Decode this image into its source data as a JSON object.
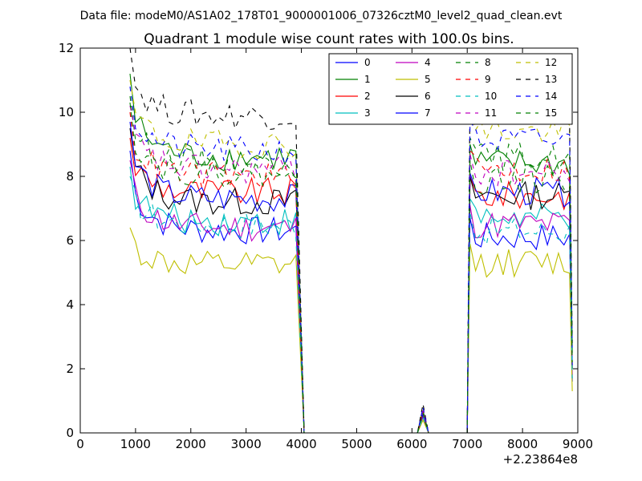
{
  "chart_data": {
    "type": "line",
    "suptitle": "Data file: modeM0/AS1A02_178T01_9000001006_07326cztM0_level2_quad_clean.evt",
    "title": "Quadrant 1 module wise count rates with 100.0s bins.",
    "xlabel": "",
    "ylabel": "",
    "xlim": [
      0,
      9000
    ],
    "ylim": [
      0,
      12
    ],
    "x_offset_label": "+2.23864e8",
    "x_ticks": [
      0,
      1000,
      2000,
      3000,
      4000,
      5000,
      6000,
      7000,
      8000,
      9000
    ],
    "x_tick_labels": [
      "0",
      "1000",
      "2000",
      "3000",
      "4000",
      "5000",
      "6000",
      "7000",
      "8000",
      "9000"
    ],
    "y_ticks": [
      0,
      2,
      4,
      6,
      8,
      10,
      12
    ],
    "y_tick_labels": [
      "0",
      "2",
      "4",
      "6",
      "8",
      "10",
      "12"
    ],
    "legend_position": "top-right",
    "legend_columns": 4,
    "segments": {
      "seg1_start": 900,
      "seg1_end": 3950,
      "seg2_start": 7050,
      "seg2_end": 8850,
      "step": 100,
      "gap_points": [
        [
          4050,
          0
        ],
        [
          4100,
          0
        ],
        [
          6000,
          0
        ],
        [
          6100,
          0
        ],
        [
          6200,
          "peak"
        ],
        [
          6300,
          0
        ],
        [
          7000,
          0
        ]
      ],
      "tail_x": 8900
    },
    "series": [
      {
        "name": "0",
        "color": "#0000ff",
        "dash": "solid",
        "level1": 6.3,
        "level2": 6.1,
        "start": 8.8,
        "peak": 0.6,
        "tail": 1.6
      },
      {
        "name": "1",
        "color": "#008000",
        "dash": "solid",
        "level1": 8.6,
        "level2": 8.4,
        "start": 11.2,
        "peak": 0.7,
        "tail": 2.5
      },
      {
        "name": "2",
        "color": "#ff0000",
        "dash": "solid",
        "level1": 7.5,
        "level2": 7.4,
        "start": 9.2,
        "peak": 0.6,
        "tail": 2.0
      },
      {
        "name": "3",
        "color": "#00bfbf",
        "dash": "solid",
        "level1": 6.6,
        "level2": 6.7,
        "start": 8.3,
        "peak": 0.5,
        "tail": 1.8
      },
      {
        "name": "4",
        "color": "#bf00bf",
        "dash": "solid",
        "level1": 6.4,
        "level2": 6.5,
        "start": 8.5,
        "peak": 0.5,
        "tail": 1.7
      },
      {
        "name": "5",
        "color": "#bfbf00",
        "dash": "solid",
        "level1": 5.2,
        "level2": 5.3,
        "start": 6.4,
        "peak": 0.4,
        "tail": 1.3
      },
      {
        "name": "6",
        "color": "#000000",
        "dash": "solid",
        "level1": 7.2,
        "level2": 7.4,
        "start": 9.5,
        "peak": 0.6,
        "tail": 2.0
      },
      {
        "name": "7",
        "color": "#0000ff",
        "dash": "solid",
        "level1": 7.3,
        "level2": 7.5,
        "start": 9.7,
        "peak": 0.6,
        "tail": 2.1
      },
      {
        "name": "8",
        "color": "#008000",
        "dash": "dashed",
        "level1": 8.4,
        "level2": 8.6,
        "start": 10.5,
        "peak": 0.7,
        "tail": 2.4
      },
      {
        "name": "9",
        "color": "#ff0000",
        "dash": "dashed",
        "level1": 8.0,
        "level2": 8.2,
        "start": 10.0,
        "peak": 0.7,
        "tail": 2.3
      },
      {
        "name": "10",
        "color": "#00bfbf",
        "dash": "dashed",
        "level1": 6.5,
        "level2": 6.3,
        "start": 8.0,
        "peak": 0.5,
        "tail": 1.7
      },
      {
        "name": "11",
        "color": "#bf00bf",
        "dash": "dashed",
        "level1": 8.2,
        "level2": 8.1,
        "start": 10.2,
        "peak": 0.7,
        "tail": 2.2
      },
      {
        "name": "12",
        "color": "#bfbf00",
        "dash": "dashed",
        "level1": 9.0,
        "level2": 9.4,
        "start": 11.0,
        "peak": 0.8,
        "tail": 2.6
      },
      {
        "name": "13",
        "color": "#000000",
        "dash": "dashed",
        "level1": 9.9,
        "level2": 10.0,
        "start": 12.0,
        "peak": 0.9,
        "tail": 2.8
      },
      {
        "name": "14",
        "color": "#0000ff",
        "dash": "dashed",
        "level1": 8.8,
        "level2": 9.1,
        "start": 10.8,
        "peak": 0.8,
        "tail": 2.5
      },
      {
        "name": "15",
        "color": "#008000",
        "dash": "dashed",
        "level1": 8.1,
        "level2": 7.9,
        "start": 10.3,
        "peak": 0.6,
        "tail": 2.2
      }
    ]
  }
}
